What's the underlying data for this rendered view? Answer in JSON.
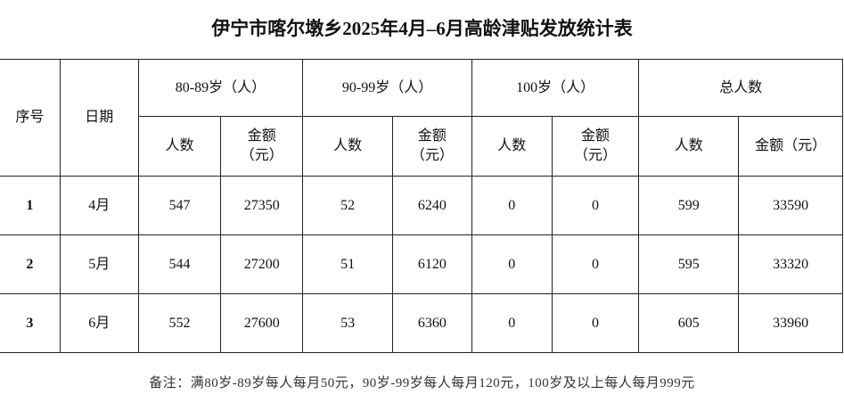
{
  "header": {
    "title": "伊宁市喀尔墩乡2025年4月–6月高龄津贴发放统计表"
  },
  "table": {
    "index_header": "序号",
    "date_header": "日期",
    "groups": [
      "80-89岁（人）",
      "90-99岁（人）",
      "100岁（人）",
      "总人数"
    ],
    "subheaders": [
      [
        "人数"
      ],
      [
        "金额",
        "（元）"
      ],
      [
        "人数"
      ],
      [
        "金额",
        "（元）"
      ],
      [
        "人数"
      ],
      [
        "金额",
        "（元）"
      ],
      [
        "人数"
      ],
      [
        "金额（元）"
      ]
    ],
    "rows": [
      [
        "1",
        "4月",
        547,
        27350,
        52,
        6240,
        0,
        0,
        599,
        33590
      ],
      [
        "2",
        "5月",
        544,
        27200,
        51,
        6120,
        0,
        0,
        595,
        33320
      ],
      [
        "3",
        "6月",
        552,
        27600,
        53,
        6360,
        0,
        0,
        605,
        33960
      ]
    ]
  },
  "note": "备注：满80岁-89岁每人每月50元，90岁-99岁每人每月120元，100岁及以上每人每月999元"
}
